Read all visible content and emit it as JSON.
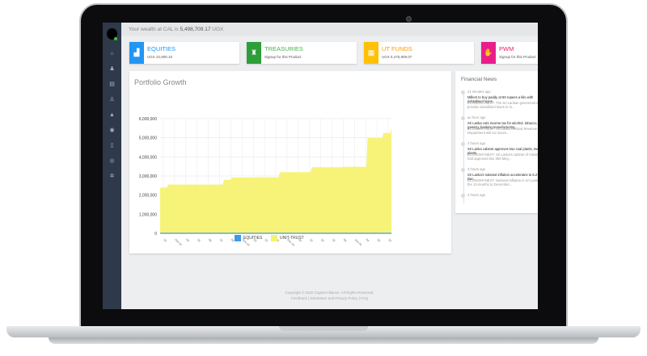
{
  "header": {
    "wealth_prefix": "Your wealth at CAL is",
    "wealth_value": "5,498,709.17",
    "currency": "UGX"
  },
  "sidebar": {
    "icons": [
      "home-icon",
      "user-icon",
      "document-icon",
      "users-icon",
      "bank-icon",
      "shield-icon",
      "file-icon",
      "globe-icon",
      "gear-icon"
    ]
  },
  "cards": [
    {
      "title": "EQUITIES",
      "sub": "UGX 22,800.10",
      "color": "#2196f3",
      "title_color": "#2196f3",
      "icon": "chart-icon"
    },
    {
      "title": "TREASURIES",
      "sub": "Signup for this Product",
      "color": "#2e9e3a",
      "title_color": "#4caf50",
      "icon": "building-icon"
    },
    {
      "title": "UT FUNDS",
      "sub": "UGX 5,475,909.07",
      "color": "#ffc107",
      "title_color": "#ff9800",
      "icon": "coins-icon"
    },
    {
      "title": "PWM",
      "sub": "Signup for this Product",
      "color": "#e91e8c",
      "title_color": "#e91e63",
      "icon": "hand-icon"
    }
  ],
  "panel": {
    "title": "Portfolio Growth"
  },
  "chart_data": {
    "type": "area",
    "title": "Portfolio Growth",
    "ylim": [
      0,
      6000000
    ],
    "yticks": [
      "0",
      "1,000,000",
      "2,000,000",
      "3,000,000",
      "4,000,000",
      "5,000,000",
      "6,000,000"
    ],
    "xtick_labels": [
      "15",
      "Oct-19",
      "09",
      "15",
      "06",
      "22",
      "06",
      "Nov-19",
      "15",
      "15",
      "15",
      "Dec-19",
      "09",
      "15",
      "15",
      "15",
      "06",
      "Jan-20",
      "09",
      "15",
      "15"
    ],
    "grid": true,
    "legend": "bottom",
    "series": [
      {
        "name": "EQUITIES",
        "color": "#3d9be9",
        "values": [
          22800,
          22800,
          22800,
          22800,
          22800,
          22800,
          22800,
          22800,
          22800,
          22800,
          22800,
          22800,
          22800,
          22800,
          22800,
          22800,
          22800,
          22800,
          22800,
          22800,
          22800,
          22800,
          22800,
          22800,
          22800,
          22800,
          22800,
          22800,
          22800,
          22800
        ]
      },
      {
        "name": "UNIT-TRUST",
        "color": "#f5f271",
        "values": [
          2400000,
          2550000,
          2550000,
          2550000,
          2550000,
          2550000,
          2550000,
          2550000,
          2800000,
          2920000,
          2920000,
          2920000,
          2930000,
          2930000,
          2930000,
          3200000,
          3200000,
          3200000,
          3200000,
          3460000,
          3460000,
          3460000,
          3460000,
          3480000,
          3480000,
          3480000,
          5000000,
          4980000,
          5250000,
          5500000
        ]
      }
    ]
  },
  "news": {
    "title": "Financial News",
    "items": [
      {
        "time": "21 minutes ago",
        "headline": "Millers to buy paddy at 50 rupees a kilo with subsidised loans",
        "body": "ECONOMYNEXT- The Sri Lankan government will provide subsidised loans to m..."
      },
      {
        "time": "an hour ago",
        "headline": "Sri Lanka cuts income tax for alcohol, tobacco, gaming, banking manufacturing",
        "body": "ECONOMYNEXT- Sri Lanka's Inland Revenue Department will cut incom..."
      },
      {
        "time": "3 hours ago",
        "headline": "Sri Lanka cabinet approves two coal plants, two LNG plants",
        "body": "ECONOMYNEXT- Sri Lanka's cabinet of ministers had approved two 300 Meg..."
      },
      {
        "time": "3 hours ago",
        "headline": "Sri Lanka's national inflation accelerates to 6.2-pct in Dec",
        "body": "ECONOMYNEXT- National inflation in Sri Lanka for the 12-months to December..."
      },
      {
        "time": "3 hours ago",
        "headline": "",
        "body": ""
      }
    ]
  },
  "footer": {
    "copyright": "Copyright © 2020 Capital Alliance. All Rights Reserved.",
    "links": "Feedback | Disclaimer and Privacy Policy | FAQ"
  }
}
